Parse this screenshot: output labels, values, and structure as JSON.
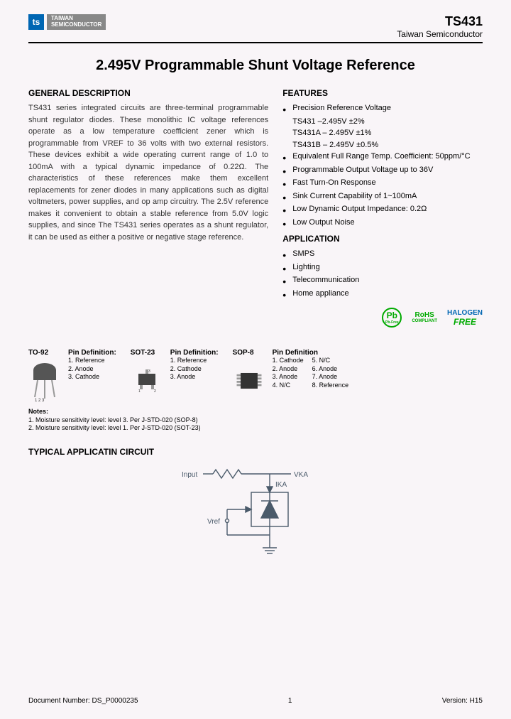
{
  "header": {
    "logo_glyph": "ts",
    "logo_text_line1": "TAIWAN",
    "logo_text_line2": "SEMICONDUCTOR",
    "part_number": "TS431",
    "company": "Taiwan Semiconductor"
  },
  "title": "2.495V Programmable Shunt Voltage Reference",
  "general_description": {
    "heading": "GENERAL DESCRIPTION",
    "text": "TS431 series integrated circuits are three-terminal programmable shunt regulator diodes. These monolithic IC voltage references operate as a low temperature coefficient zener which is programmable from VREF to 36 volts with two external resistors. These devices exhibit a wide operating current range of 1.0 to 100mA with a typical dynamic impedance of 0.22Ω.\nThe characteristics of these references make them excellent replacements for zener diodes in many applications such as digital voltmeters, power supplies, and op amp circuitry. The 2.5V reference makes it convenient to obtain a stable reference from 5.0V logic supplies, and since The TS431 series operates as a shunt regulator, it can be used as either a positive or negative stage reference."
  },
  "features": {
    "heading": "FEATURES",
    "items": [
      {
        "text": "Precision Reference Voltage",
        "sub": [
          "TS431 –2.495V ±2%",
          "TS431A – 2.495V ±1%",
          "TS431B – 2.495V ±0.5%"
        ]
      },
      {
        "text": "Equivalent Full Range Temp. Coefficient: 50ppm/°C"
      },
      {
        "text": "Programmable Output Voltage up to 36V"
      },
      {
        "text": "Fast Turn-On Response"
      },
      {
        "text": "Sink Current Capability of 1~100mA"
      },
      {
        "text": "Low Dynamic Output Impedance: 0.2Ω"
      },
      {
        "text": "Low Output Noise"
      }
    ]
  },
  "application": {
    "heading": "APPLICATION",
    "items": [
      "SMPS",
      "Lighting",
      "Telecommunication",
      "Home appliance"
    ]
  },
  "badges": {
    "pb": "Pb",
    "pb_sub": "Pb-Free",
    "rohs": "RoHS",
    "rohs_sub": "COMPLIANT",
    "halogen": "HALOGEN",
    "halogen_free": "FREE"
  },
  "packages": [
    {
      "name": "TO-92",
      "pin_title": "Pin Definition:",
      "pins": [
        "1. Reference",
        "2. Anode",
        "3. Cathode"
      ]
    },
    {
      "name": "SOT-23",
      "pin_title": "Pin Definition:",
      "pins": [
        "1. Reference",
        "2. Cathode",
        "3. Anode"
      ]
    },
    {
      "name": "SOP-8",
      "pin_title": "Pin Definition",
      "pins_left": [
        "1. Cathode",
        "2. Anode",
        "3. Anode",
        "4. N/C"
      ],
      "pins_right": [
        "5. N/C",
        "6. Anode",
        "7. Anode",
        "8. Reference"
      ]
    }
  ],
  "notes": {
    "title": "Notes:",
    "lines": [
      "1. Moisture sensitivity level: level 3. Per J-STD-020 (SOP-8)",
      "2. Moisture sensitivity level: level 1. Per J-STD-020 (SOT-23)"
    ]
  },
  "circuit_heading": "TYPICAL APPLICATIN CIRCUIT",
  "circuit": {
    "input_label": "Input",
    "vka_label": "VKA",
    "ika_label": "IKA",
    "vref_label": "Vref",
    "colors": {
      "stroke": "#4a5a6a",
      "text": "#4a5a6a"
    }
  },
  "footer": {
    "doc_number": "Document Number: DS_P0000235",
    "page": "1",
    "version": "Version: H15"
  }
}
